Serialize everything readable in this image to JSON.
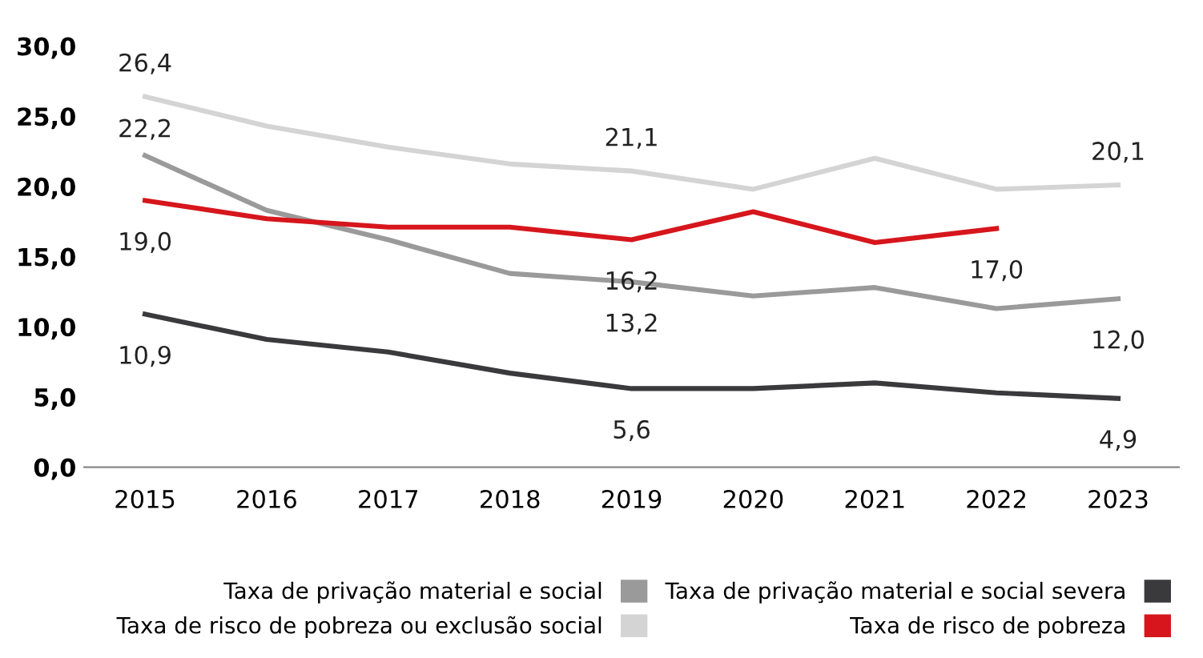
{
  "chart_data": {
    "type": "line",
    "categories": [
      "2015",
      "2016",
      "2017",
      "2018",
      "2019",
      "2020",
      "2021",
      "2022",
      "2023"
    ],
    "series": [
      {
        "name": "Taxa de privação material e social",
        "color": "#9a9a9a",
        "values": [
          22.2,
          18.3,
          16.2,
          13.8,
          13.2,
          12.2,
          12.8,
          11.3,
          12.0
        ],
        "value_labels": [
          "22,2",
          null,
          null,
          null,
          "13,2",
          null,
          null,
          null,
          "12,0"
        ]
      },
      {
        "name": "Taxa de risco de pobreza ou exclusão social",
        "color": "#d4d4d4",
        "values": [
          26.4,
          24.3,
          22.8,
          21.6,
          21.1,
          19.8,
          22.0,
          19.8,
          20.1
        ],
        "value_labels": [
          "26,4",
          null,
          null,
          null,
          "21,1",
          null,
          null,
          null,
          "20,1"
        ]
      },
      {
        "name": "Taxa de privação material e social severa",
        "color": "#3a3a3c",
        "values": [
          10.9,
          9.1,
          8.2,
          6.7,
          5.6,
          5.6,
          6.0,
          5.3,
          4.9
        ],
        "value_labels": [
          "10,9",
          null,
          null,
          null,
          "5,6",
          null,
          null,
          null,
          "4,9"
        ]
      },
      {
        "name": "Taxa de risco de pobreza",
        "color": "#d6161c",
        "values": [
          19.0,
          17.7,
          17.1,
          17.1,
          16.2,
          18.2,
          16.0,
          17.0,
          null
        ],
        "value_labels": [
          "19,0",
          null,
          null,
          null,
          "16,2",
          null,
          null,
          "17,0",
          null
        ]
      }
    ],
    "ylim": [
      0,
      30
    ],
    "yticks": [
      {
        "value": 0,
        "label": "0,0"
      },
      {
        "value": 5,
        "label": "5,0"
      },
      {
        "value": 10,
        "label": "10,0"
      },
      {
        "value": 15,
        "label": "15,0"
      },
      {
        "value": 20,
        "label": "20,0"
      },
      {
        "value": 25,
        "label": "25,0"
      },
      {
        "value": 30,
        "label": "30,0"
      }
    ],
    "grid": false,
    "legend": "bottom",
    "marker": "none",
    "line_style": "solid"
  }
}
